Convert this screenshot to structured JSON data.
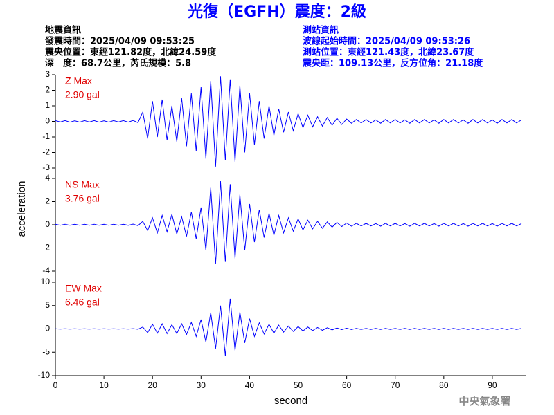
{
  "header": {
    "title": "光復（EGFH）震度：2級",
    "left": [
      "地震資訊",
      "發震時間：2025/04/09 09:53:25",
      "震央位置：東經121.82度，北緯24.59度",
      "深　度：68.7公里，芮氏規模：5.8"
    ],
    "right": [
      "測站資訊",
      "波線起始時間：2025/04/09 09:53:26",
      "測站位置：東經121.43度，北緯23.67度",
      "震央距：109.13公里，反方位角：21.18度"
    ],
    "ylabel": "acceleration",
    "watermark": "中央氣象署"
  },
  "chart_data": [
    {
      "type": "line",
      "annotations": [
        "Z Max",
        "2.90 gal"
      ],
      "color": "#0000ff",
      "xlim": [
        0,
        97
      ],
      "ylim": [
        -3,
        3
      ],
      "yticks": [
        -3,
        -2,
        -1,
        0,
        1,
        2,
        3
      ],
      "x": [
        0,
        1,
        2,
        3,
        4,
        5,
        6,
        7,
        8,
        9,
        10,
        11,
        12,
        13,
        14,
        15,
        16,
        17,
        18,
        19,
        20,
        21,
        22,
        23,
        24,
        25,
        26,
        27,
        28,
        29,
        30,
        31,
        32,
        33,
        34,
        35,
        36,
        37,
        38,
        39,
        40,
        41,
        42,
        43,
        44,
        45,
        46,
        47,
        48,
        49,
        50,
        51,
        52,
        53,
        54,
        55,
        56,
        57,
        58,
        59,
        60,
        61,
        62,
        63,
        64,
        65,
        66,
        67,
        68,
        69,
        70,
        71,
        72,
        73,
        74,
        75,
        76,
        77,
        78,
        79,
        80,
        81,
        82,
        83,
        84,
        85,
        86,
        87,
        88,
        89,
        90,
        91,
        92,
        93,
        94,
        95,
        96
      ],
      "values": [
        0.05,
        -0.04,
        0.05,
        -0.05,
        0.04,
        -0.05,
        0.05,
        -0.04,
        0.05,
        -0.05,
        0.04,
        -0.05,
        0.05,
        -0.04,
        0.05,
        -0.05,
        0.06,
        -0.08,
        0.6,
        -1.1,
        1.3,
        -1.0,
        1.4,
        -1.2,
        1.0,
        -1.3,
        1.5,
        -1.6,
        1.8,
        -1.9,
        2.2,
        -2.4,
        2.6,
        -2.9,
        2.9,
        -2.5,
        2.7,
        -2.6,
        2.3,
        -2.0,
        1.8,
        -1.5,
        1.3,
        -1.1,
        1.0,
        -0.9,
        0.8,
        -0.7,
        0.6,
        -0.6,
        0.5,
        -0.4,
        0.4,
        -0.35,
        0.3,
        -0.3,
        0.25,
        -0.25,
        0.2,
        -0.2,
        0.15,
        -0.12,
        0.12,
        -0.1,
        0.12,
        -0.1,
        0.1,
        -0.12,
        0.12,
        -0.1,
        0.12,
        -0.1,
        0.1,
        -0.12,
        0.12,
        -0.1,
        0.12,
        -0.1,
        0.1,
        -0.12,
        0.12,
        -0.1,
        0.12,
        -0.1,
        0.1,
        -0.12,
        0.12,
        -0.1,
        0.12,
        -0.1,
        0.1,
        -0.12,
        0.12,
        -0.1,
        0.12,
        -0.1,
        0.1
      ]
    },
    {
      "type": "line",
      "annotations": [
        "NS Max",
        "3.76 gal"
      ],
      "color": "#0000ff",
      "xlim": [
        0,
        97
      ],
      "ylim": [
        -4,
        4
      ],
      "yticks": [
        -4,
        -2,
        0,
        2,
        4
      ],
      "x": [
        0,
        1,
        2,
        3,
        4,
        5,
        6,
        7,
        8,
        9,
        10,
        11,
        12,
        13,
        14,
        15,
        16,
        17,
        18,
        19,
        20,
        21,
        22,
        23,
        24,
        25,
        26,
        27,
        28,
        29,
        30,
        31,
        32,
        33,
        34,
        35,
        36,
        37,
        38,
        39,
        40,
        41,
        42,
        43,
        44,
        45,
        46,
        47,
        48,
        49,
        50,
        51,
        52,
        53,
        54,
        55,
        56,
        57,
        58,
        59,
        60,
        61,
        62,
        63,
        64,
        65,
        66,
        67,
        68,
        69,
        70,
        71,
        72,
        73,
        74,
        75,
        76,
        77,
        78,
        79,
        80,
        81,
        82,
        83,
        84,
        85,
        86,
        87,
        88,
        89,
        90,
        91,
        92,
        93,
        94,
        95,
        96
      ],
      "values": [
        0.05,
        -0.04,
        0.05,
        -0.05,
        0.04,
        -0.05,
        0.05,
        -0.04,
        0.05,
        -0.05,
        0.04,
        -0.05,
        0.05,
        -0.04,
        0.05,
        -0.05,
        0.06,
        -0.08,
        0.3,
        -0.5,
        0.6,
        -0.7,
        0.8,
        -0.6,
        0.9,
        -0.8,
        0.7,
        -1.0,
        1.1,
        -1.2,
        1.5,
        -2.2,
        3.2,
        -3.4,
        3.76,
        -3.2,
        3.5,
        -2.9,
        2.6,
        -2.2,
        1.8,
        -1.5,
        1.3,
        -1.1,
        1.0,
        -0.9,
        0.8,
        -0.7,
        0.6,
        -0.55,
        0.5,
        -0.45,
        0.4,
        -0.35,
        0.3,
        -0.3,
        0.25,
        -0.2,
        0.2,
        -0.15,
        0.15,
        -0.12,
        0.12,
        -0.1,
        0.12,
        -0.1,
        0.1,
        -0.12,
        0.12,
        -0.1,
        0.12,
        -0.1,
        0.1,
        -0.12,
        0.12,
        -0.1,
        0.12,
        -0.1,
        0.1,
        -0.12,
        0.12,
        -0.1,
        0.12,
        -0.1,
        0.1,
        -0.12,
        0.12,
        -0.1,
        0.12,
        -0.1,
        0.1,
        -0.12,
        0.12,
        -0.1,
        0.12,
        -0.1,
        0.1
      ]
    },
    {
      "type": "line",
      "annotations": [
        "EW Max",
        "6.46 gal"
      ],
      "color": "#0000ff",
      "xlabel": "second",
      "xlim": [
        0,
        97
      ],
      "xticks": [
        0,
        10,
        20,
        30,
        40,
        50,
        60,
        70,
        80,
        90
      ],
      "ylim": [
        -10,
        10
      ],
      "yticks": [
        -10,
        -5,
        0,
        5,
        10
      ],
      "x": [
        0,
        1,
        2,
        3,
        4,
        5,
        6,
        7,
        8,
        9,
        10,
        11,
        12,
        13,
        14,
        15,
        16,
        17,
        18,
        19,
        20,
        21,
        22,
        23,
        24,
        25,
        26,
        27,
        28,
        29,
        30,
        31,
        32,
        33,
        34,
        35,
        36,
        37,
        38,
        39,
        40,
        41,
        42,
        43,
        44,
        45,
        46,
        47,
        48,
        49,
        50,
        51,
        52,
        53,
        54,
        55,
        56,
        57,
        58,
        59,
        60,
        61,
        62,
        63,
        64,
        65,
        66,
        67,
        68,
        69,
        70,
        71,
        72,
        73,
        74,
        75,
        76,
        77,
        78,
        79,
        80,
        81,
        82,
        83,
        84,
        85,
        86,
        87,
        88,
        89,
        90,
        91,
        92,
        93,
        94,
        95,
        96
      ],
      "values": [
        0.05,
        -0.04,
        0.05,
        -0.05,
        0.04,
        -0.05,
        0.05,
        -0.04,
        0.05,
        -0.05,
        0.04,
        -0.05,
        0.05,
        -0.04,
        0.05,
        -0.05,
        0.06,
        -0.08,
        0.4,
        -0.8,
        1.0,
        -0.9,
        1.1,
        -1.0,
        0.9,
        -1.0,
        1.1,
        -1.2,
        1.4,
        -1.6,
        2.0,
        -2.8,
        3.5,
        -4.2,
        5.0,
        -5.8,
        6.46,
        -4.6,
        3.6,
        -3.0,
        2.2,
        -1.6,
        1.3,
        -1.1,
        1.0,
        -0.9,
        0.8,
        -0.7,
        0.6,
        -0.55,
        0.5,
        -0.45,
        0.4,
        -0.35,
        0.3,
        -0.3,
        0.25,
        -0.2,
        0.2,
        -0.15,
        0.15,
        -0.12,
        0.12,
        -0.1,
        0.12,
        -0.1,
        0.1,
        -0.12,
        0.12,
        -0.1,
        0.12,
        -0.1,
        0.1,
        -0.12,
        0.12,
        -0.1,
        0.12,
        -0.1,
        0.1,
        -0.12,
        0.12,
        -0.1,
        0.12,
        -0.1,
        0.1,
        -0.12,
        0.12,
        -0.1,
        0.12,
        -0.1,
        0.1,
        -0.12,
        0.12,
        -0.1,
        0.12,
        -0.1,
        0.1
      ]
    }
  ]
}
